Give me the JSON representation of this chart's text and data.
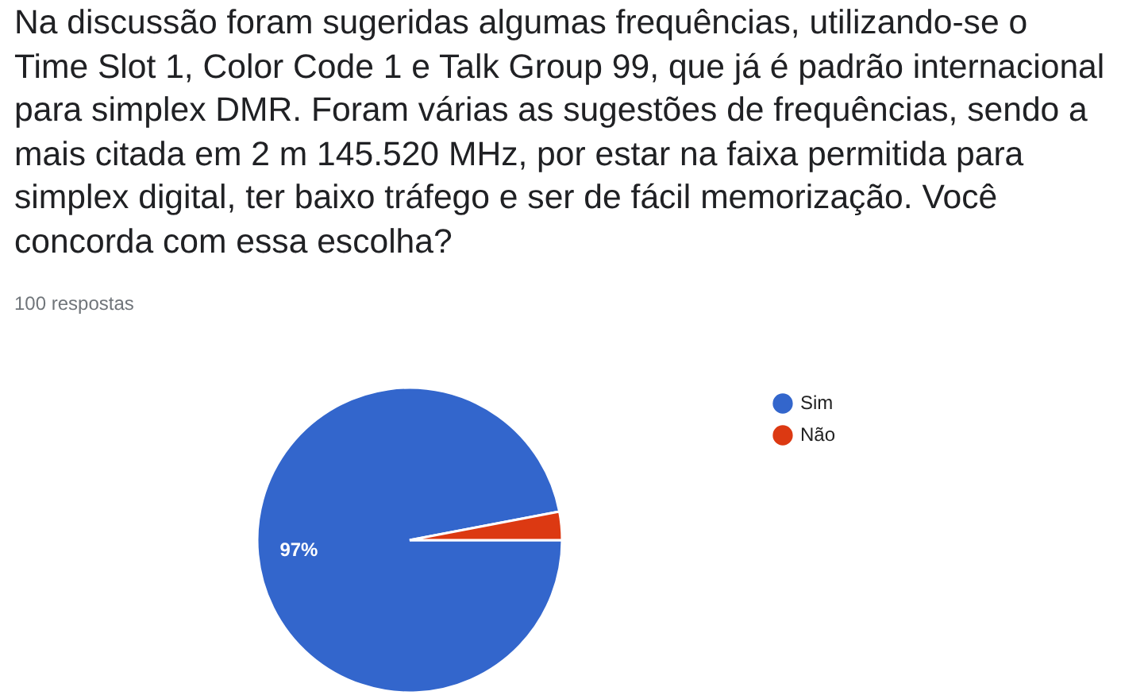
{
  "chart_data": {
    "type": "pie",
    "title": "Na discussão foram sugeridas algumas frequências, utilizando-se o Time Slot 1, Color Code 1 e Talk Group 99, que já é padrão internacional para simplex DMR. Foram várias as sugestões de frequências, sendo a mais citada em 2 m 145.520 MHz, por estar na faixa permitida para simplex digital, ter baixo tráfego e ser de fácil memorização. Você concorda com essa escolha?",
    "subtitle": "100 respostas",
    "categories": [
      "Sim",
      "Não"
    ],
    "values": [
      97,
      3
    ],
    "colors": [
      "#3366cc",
      "#dc3912"
    ],
    "value_labels": [
      "97%",
      null
    ],
    "legend": "top right"
  }
}
